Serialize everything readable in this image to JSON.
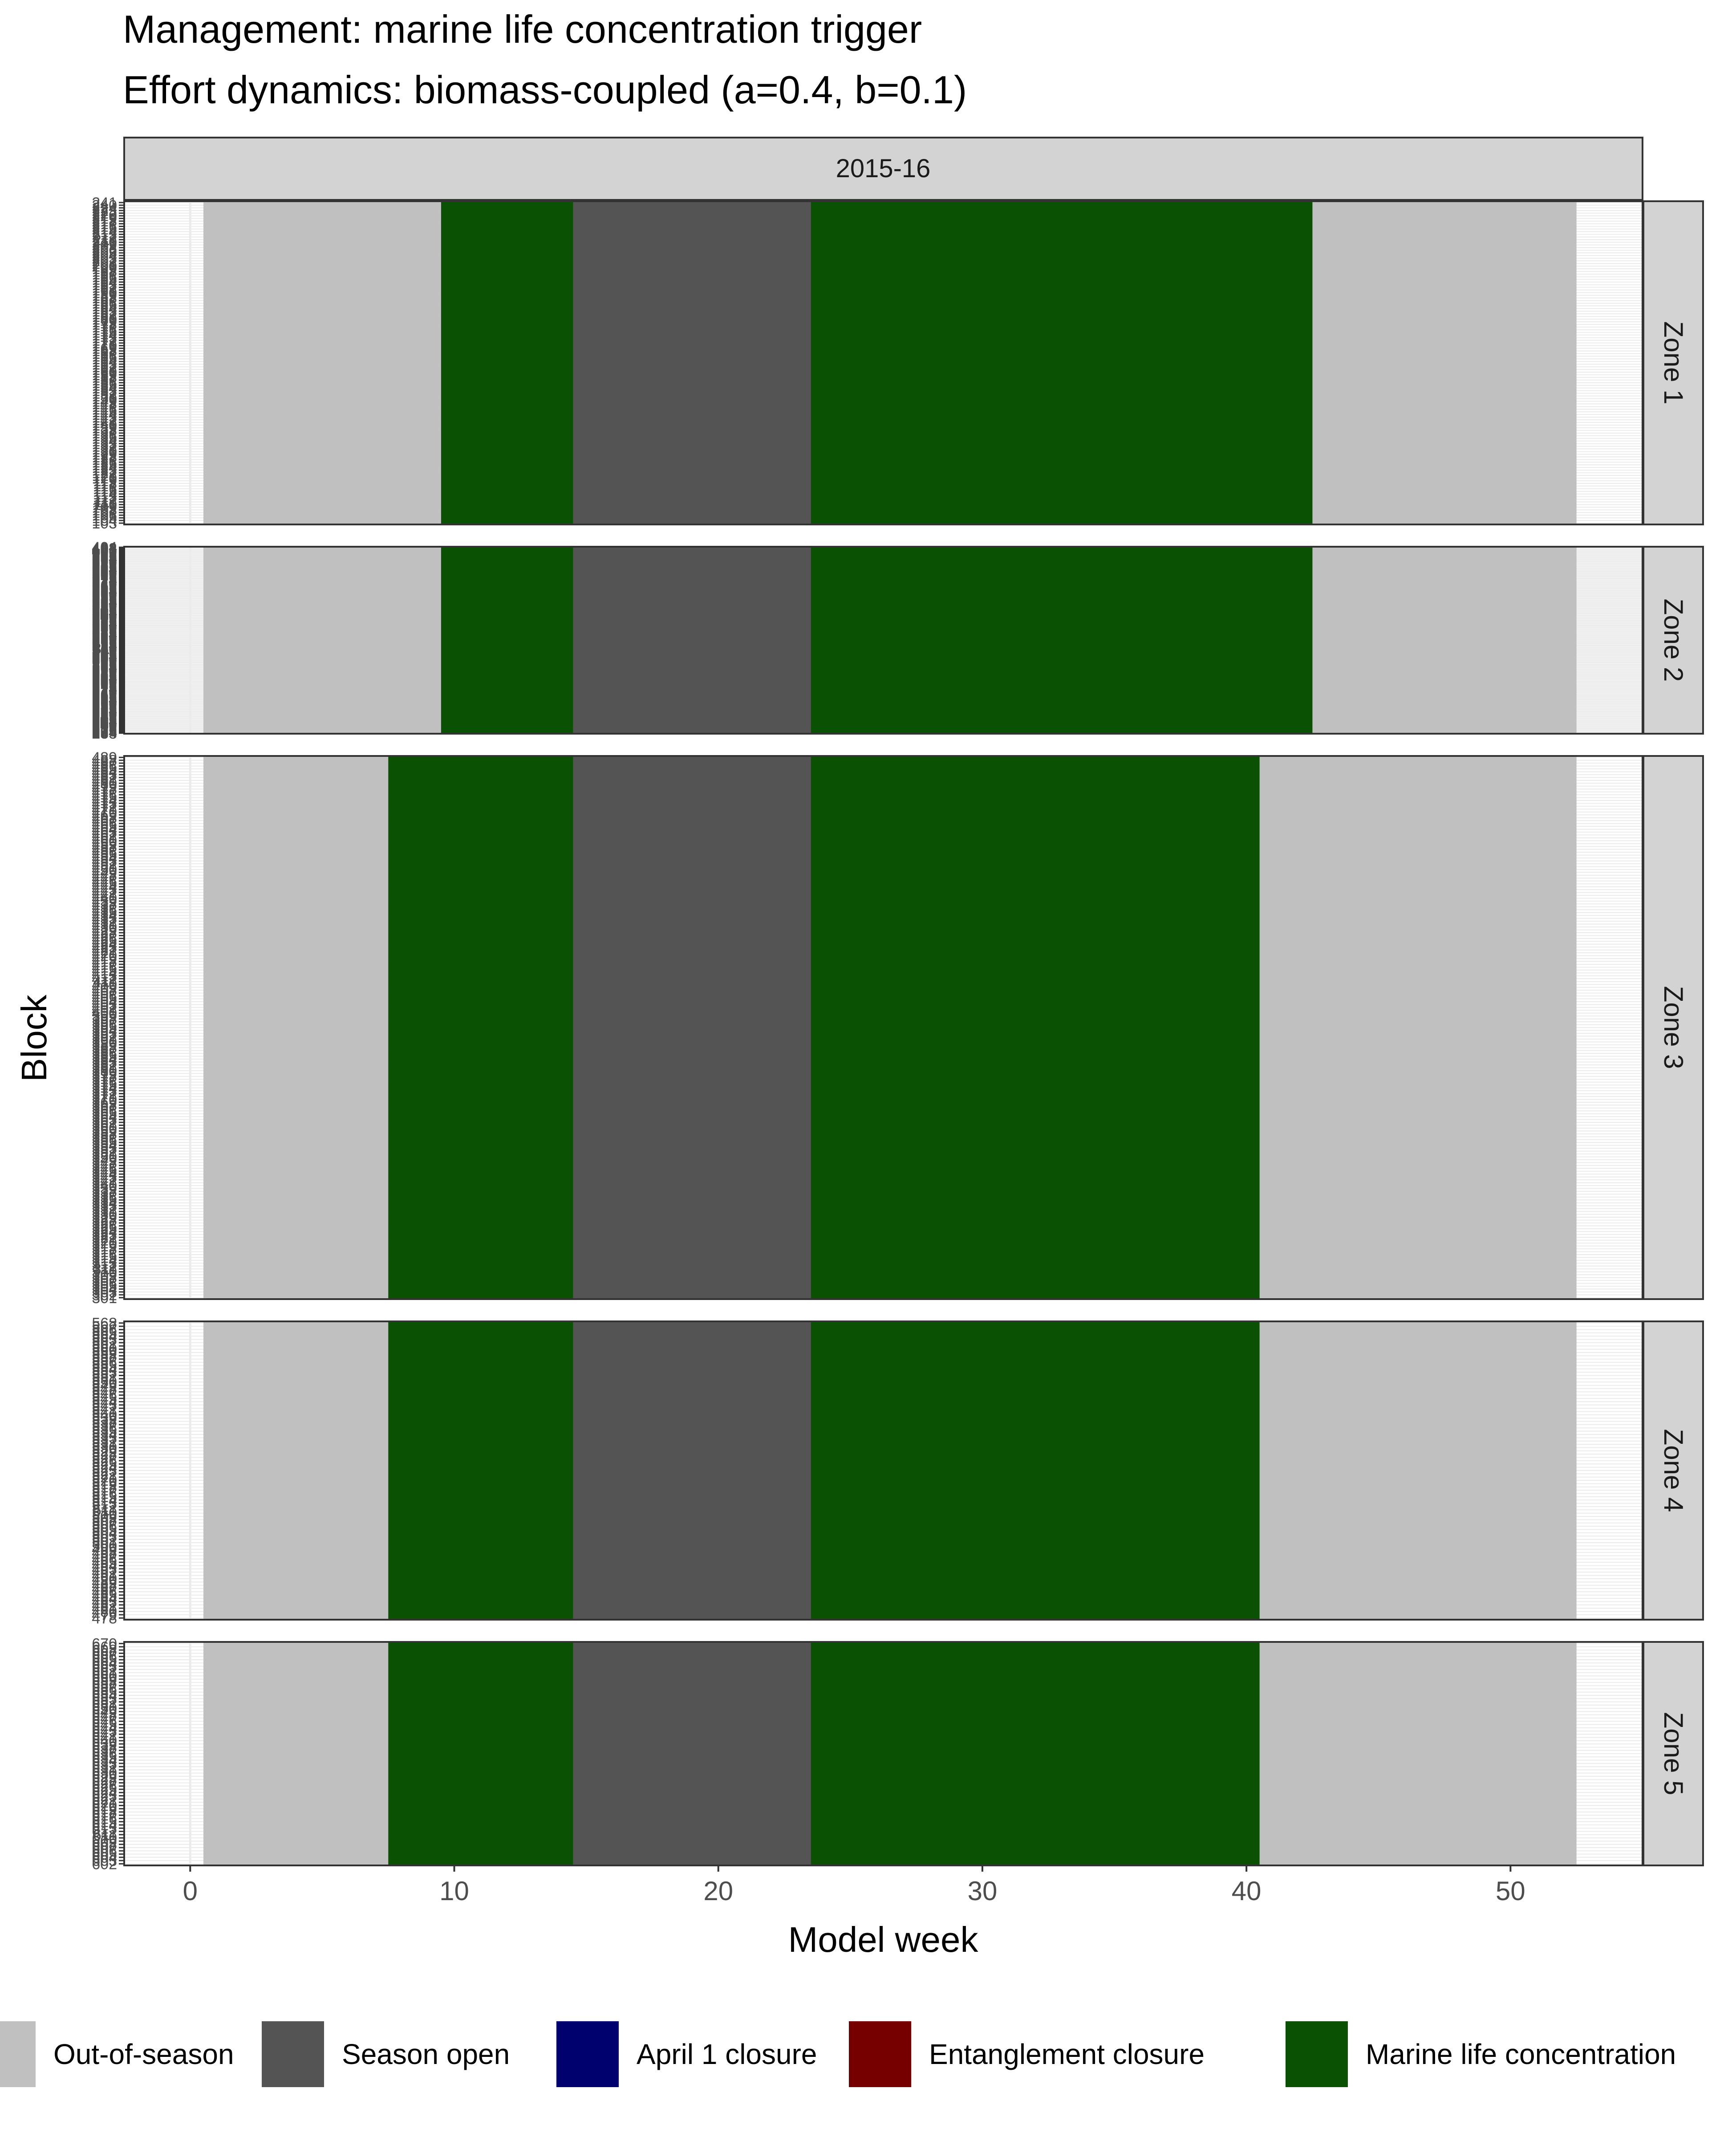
{
  "chart_data": {
    "type": "heatmap",
    "title": "Management: marine life concentration trigger",
    "subtitle": "Effort dynamics: biomass-coupled (a=0.4, b=0.1)",
    "facet_col": "2015-16",
    "xlabel": "Model week",
    "ylabel": "Block",
    "xlim": [
      -2.5,
      55
    ],
    "xticks": [
      0,
      10,
      20,
      30,
      40,
      50
    ],
    "legend_position": "bottom",
    "legend": [
      {
        "key": "out",
        "label": "Out-of-season",
        "color": "#c0c0c0"
      },
      {
        "key": "open",
        "label": "Season open",
        "color": "#545454"
      },
      {
        "key": "april",
        "label": "April 1 closure",
        "color": "#00006e"
      },
      {
        "key": "entangle",
        "label": "Entanglement closure",
        "color": "#760000"
      },
      {
        "key": "mlc",
        "label": "Marine life concentration",
        "color": "#0b5103"
      }
    ],
    "zones": [
      {
        "label": "Zone 1",
        "blocks": [
          "241",
          "240",
          "224",
          "223",
          "222",
          "220",
          "219",
          "218",
          "217",
          "216",
          "215",
          "214",
          "213",
          "212",
          "211",
          "210",
          "209",
          "208",
          "206",
          "205",
          "204",
          "203",
          "202",
          "201",
          "200",
          "199",
          "198",
          "197",
          "196",
          "195",
          "194",
          "193",
          "192",
          "191",
          "190",
          "189",
          "188",
          "187",
          "186",
          "185",
          "184",
          "183",
          "182",
          "181",
          "180",
          "179",
          "178",
          "177",
          "176",
          "175",
          "174",
          "173",
          "172",
          "171",
          "170",
          "169",
          "168",
          "167",
          "166",
          "165",
          "164",
          "163",
          "162",
          "161",
          "160",
          "159",
          "158",
          "157",
          "156",
          "155",
          "154",
          "153",
          "152",
          "151",
          "150",
          "149",
          "148",
          "147",
          "146",
          "145",
          "144",
          "143",
          "142",
          "141",
          "140",
          "139",
          "138",
          "137",
          "136",
          "135",
          "134",
          "133",
          "132",
          "131",
          "130",
          "129",
          "128",
          "127",
          "126",
          "125",
          "124",
          "123",
          "122",
          "121",
          "120",
          "119",
          "118",
          "117",
          "116",
          "115",
          "114",
          "113",
          "112",
          "111",
          "110",
          "109",
          "108",
          "107",
          "106",
          "105",
          "104",
          "103"
        ],
        "segments": [
          {
            "state": "out",
            "start": 1,
            "end": 9
          },
          {
            "state": "mlc",
            "start": 10,
            "end": 14
          },
          {
            "state": "open",
            "start": 15,
            "end": 23
          },
          {
            "state": "mlc",
            "start": 24,
            "end": 42
          },
          {
            "state": "out",
            "start": 43,
            "end": 52
          }
        ]
      },
      {
        "label": "Zone 2",
        "blocks": [
          "404",
          "403",
          "402",
          "401",
          "400",
          "399",
          "398",
          "397",
          "396",
          "395",
          "394",
          "393",
          "392",
          "391",
          "390",
          "389",
          "388",
          "387",
          "386",
          "385",
          "384",
          "383",
          "382",
          "381",
          "380",
          "379",
          "378",
          "377",
          "376",
          "375",
          "374",
          "373",
          "372",
          "371",
          "370",
          "369",
          "368",
          "367",
          "366",
          "365",
          "364",
          "363",
          "362",
          "361",
          "360",
          "359",
          "358",
          "357",
          "356",
          "355",
          "354",
          "353",
          "352",
          "351",
          "350",
          "349",
          "348",
          "347",
          "346",
          "345",
          "344",
          "343",
          "342",
          "341",
          "340",
          "339",
          "338",
          "337",
          "336",
          "335",
          "334",
          "333",
          "332",
          "331",
          "330",
          "329",
          "328",
          "327",
          "326",
          "325",
          "324",
          "323",
          "322",
          "321",
          "320",
          "319",
          "318",
          "317",
          "316",
          "315",
          "314",
          "313",
          "312",
          "311",
          "310",
          "309",
          "308",
          "307",
          "306",
          "305",
          "304",
          "303",
          "302",
          "301",
          "300",
          "299",
          "298",
          "297",
          "296",
          "295",
          "294",
          "293",
          "292",
          "291",
          "290",
          "289",
          "288",
          "287",
          "286",
          "285",
          "284",
          "283",
          "282",
          "281",
          "280",
          "279",
          "278",
          "277",
          "276",
          "275",
          "274",
          "273",
          "272",
          "271",
          "270",
          "269",
          "268",
          "267",
          "266",
          "265",
          "264",
          "263",
          "262",
          "261",
          "260",
          "259",
          "258",
          "257",
          "256",
          "255",
          "254",
          "253",
          "252",
          "251",
          "250",
          "249",
          "248",
          "247",
          "246",
          "245",
          "244",
          "243",
          "242",
          "241",
          "240",
          "239",
          "238",
          "237",
          "236",
          "235",
          "234",
          "233"
        ],
        "segments": [
          {
            "state": "out",
            "start": 1,
            "end": 9
          },
          {
            "state": "mlc",
            "start": 10,
            "end": 14
          },
          {
            "state": "open",
            "start": 15,
            "end": 23
          },
          {
            "state": "mlc",
            "start": 24,
            "end": 42
          },
          {
            "state": "out",
            "start": 43,
            "end": 52
          }
        ]
      },
      {
        "label": "Zone 3",
        "blocks": [
          "489",
          "488",
          "487",
          "486",
          "485",
          "484",
          "483",
          "482",
          "481",
          "480",
          "479",
          "478",
          "477",
          "476",
          "475",
          "474",
          "473",
          "472",
          "471",
          "470",
          "469",
          "468",
          "467",
          "466",
          "465",
          "464",
          "463",
          "462",
          "461",
          "460",
          "459",
          "458",
          "457",
          "456",
          "455",
          "454",
          "453",
          "452",
          "451",
          "450",
          "449",
          "448",
          "447",
          "446",
          "445",
          "444",
          "443",
          "442",
          "441",
          "440",
          "439",
          "438",
          "437",
          "436",
          "435",
          "434",
          "433",
          "432",
          "431",
          "430",
          "429",
          "428",
          "427",
          "426",
          "425",
          "424",
          "423",
          "422",
          "421",
          "420",
          "419",
          "418",
          "417",
          "416",
          "415",
          "414",
          "413",
          "412",
          "411",
          "410",
          "409",
          "408",
          "407",
          "406",
          "405",
          "404",
          "403",
          "402",
          "401",
          "400",
          "399",
          "398",
          "397",
          "396",
          "395",
          "394",
          "393",
          "392",
          "391",
          "390",
          "389",
          "388",
          "387",
          "386",
          "385",
          "384",
          "383",
          "382",
          "381",
          "380",
          "379",
          "378",
          "377",
          "376",
          "375",
          "374",
          "373",
          "372",
          "371",
          "370",
          "369",
          "368",
          "367",
          "366",
          "365",
          "364",
          "363",
          "362",
          "361",
          "360",
          "359",
          "358",
          "357",
          "356",
          "355",
          "354",
          "353",
          "352",
          "351",
          "350",
          "349",
          "348",
          "347",
          "346",
          "345",
          "344",
          "343",
          "342",
          "341",
          "340",
          "339",
          "338",
          "337",
          "336",
          "335",
          "334",
          "333",
          "332",
          "331",
          "330",
          "329",
          "328",
          "327",
          "326",
          "325",
          "324",
          "323",
          "322",
          "321",
          "320",
          "319",
          "318",
          "317",
          "316",
          "315",
          "314",
          "313",
          "312",
          "311",
          "310",
          "309",
          "308",
          "307",
          "306",
          "305",
          "304",
          "303",
          "302",
          "301"
        ],
        "segments": [
          {
            "state": "out",
            "start": 1,
            "end": 7
          },
          {
            "state": "mlc",
            "start": 8,
            "end": 14
          },
          {
            "state": "open",
            "start": 15,
            "end": 23
          },
          {
            "state": "mlc",
            "start": 24,
            "end": 40
          },
          {
            "state": "out",
            "start": 41,
            "end": 52
          }
        ]
      },
      {
        "label": "Zone 4",
        "blocks": [
          "568",
          "567",
          "566",
          "565",
          "564",
          "563",
          "562",
          "561",
          "560",
          "559",
          "558",
          "557",
          "556",
          "555",
          "554",
          "553",
          "552",
          "551",
          "550",
          "549",
          "548",
          "547",
          "546",
          "545",
          "544",
          "543",
          "542",
          "541",
          "540",
          "539",
          "538",
          "537",
          "536",
          "535",
          "534",
          "533",
          "532",
          "531",
          "530",
          "529",
          "528",
          "527",
          "526",
          "525",
          "524",
          "523",
          "522",
          "521",
          "520",
          "519",
          "518",
          "517",
          "516",
          "515",
          "514",
          "513",
          "512",
          "511",
          "510",
          "509",
          "508",
          "507",
          "506",
          "505",
          "504",
          "503",
          "502",
          "501",
          "500",
          "499",
          "498",
          "497",
          "496",
          "495",
          "494",
          "493",
          "492",
          "491",
          "490",
          "489",
          "488",
          "487",
          "486",
          "485",
          "484",
          "483",
          "482",
          "481",
          "480",
          "479",
          "478"
        ],
        "segments": [
          {
            "state": "out",
            "start": 1,
            "end": 7
          },
          {
            "state": "mlc",
            "start": 8,
            "end": 14
          },
          {
            "state": "open",
            "start": 15,
            "end": 23
          },
          {
            "state": "mlc",
            "start": 24,
            "end": 40
          },
          {
            "state": "out",
            "start": 41,
            "end": 52
          }
        ]
      },
      {
        "label": "Zone 5",
        "blocks": [
          "670",
          "669",
          "668",
          "667",
          "666",
          "665",
          "664",
          "663",
          "662",
          "661",
          "660",
          "659",
          "658",
          "657",
          "656",
          "655",
          "654",
          "653",
          "652",
          "651",
          "650",
          "649",
          "648",
          "647",
          "646",
          "645",
          "644",
          "643",
          "642",
          "641",
          "640",
          "639",
          "638",
          "637",
          "636",
          "635",
          "634",
          "633",
          "632",
          "631",
          "630",
          "629",
          "628",
          "627",
          "626",
          "625",
          "624",
          "623",
          "622",
          "621",
          "620",
          "619",
          "618",
          "617",
          "616",
          "615",
          "614",
          "613",
          "612",
          "611",
          "610",
          "609",
          "608",
          "607",
          "606",
          "605",
          "604",
          "603",
          "602"
        ],
        "segments": [
          {
            "state": "out",
            "start": 1,
            "end": 7
          },
          {
            "state": "mlc",
            "start": 8,
            "end": 14
          },
          {
            "state": "open",
            "start": 15,
            "end": 23
          },
          {
            "state": "mlc",
            "start": 24,
            "end": 40
          },
          {
            "state": "out",
            "start": 41,
            "end": 52
          }
        ]
      }
    ]
  }
}
